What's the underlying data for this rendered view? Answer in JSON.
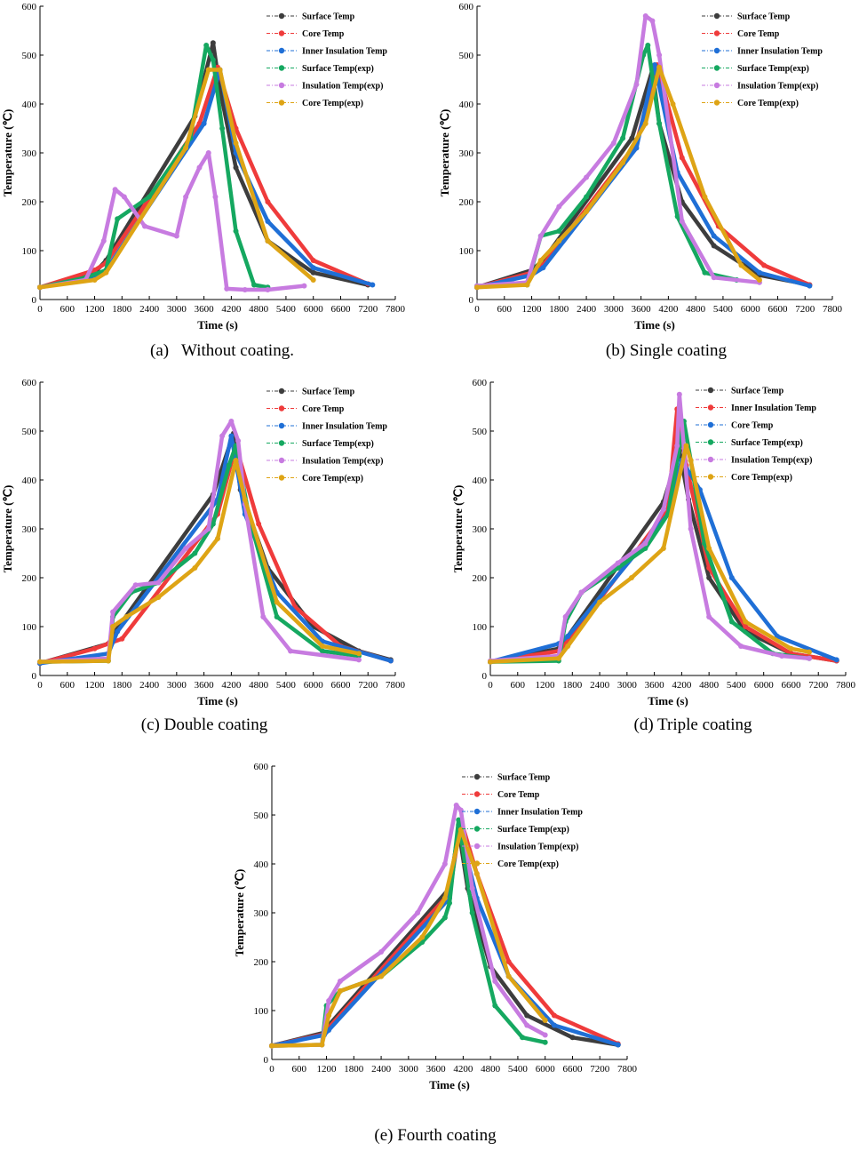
{
  "colors": {
    "surface": "#3d3d3d",
    "core": "#ef3b3b",
    "inner": "#1f6fd6",
    "surface_exp": "#15a860",
    "insulation_exp": "#c77be0",
    "core_exp": "#dea415"
  },
  "chart_data": [
    {
      "id": "a",
      "type": "line",
      "caption": "(a)   Without coating.",
      "xlabel": "Time (s)",
      "ylabel": "Temperature (℃)",
      "xlim": [
        0,
        7800
      ],
      "ylim": [
        0,
        600
      ],
      "xticks": [
        0,
        600,
        1200,
        1800,
        2400,
        3000,
        3600,
        4200,
        4800,
        5400,
        6000,
        6600,
        7200,
        7800
      ],
      "yticks": [
        0,
        100,
        200,
        300,
        400,
        500,
        600
      ],
      "series": [
        {
          "name": "Surface Temp",
          "key": "surface",
          "x": [
            0,
            1200,
            1450,
            3400,
            3800,
            3950,
            4300,
            5000,
            6000,
            7200
          ],
          "y": [
            25,
            55,
            80,
            375,
            525,
            430,
            270,
            120,
            55,
            30
          ]
        },
        {
          "name": "Core Temp",
          "key": "core",
          "x": [
            0,
            1200,
            1450,
            3500,
            3900,
            4300,
            5000,
            6000,
            7200
          ],
          "y": [
            25,
            60,
            75,
            360,
            475,
            350,
            200,
            80,
            32
          ]
        },
        {
          "name": "Inner Insulation Temp",
          "key": "inner",
          "x": [
            0,
            1200,
            1450,
            3600,
            3950,
            4300,
            5000,
            6000,
            7300
          ],
          "y": [
            25,
            48,
            60,
            360,
            470,
            300,
            160,
            65,
            30
          ]
        },
        {
          "name": "Surface Temp(exp)",
          "key": "surface_exp",
          "x": [
            0,
            1000,
            1450,
            1700,
            2400,
            3300,
            3650,
            3800,
            4000,
            4300,
            4700,
            5000
          ],
          "y": [
            25,
            45,
            60,
            165,
            210,
            330,
            520,
            490,
            350,
            140,
            30,
            25
          ]
        },
        {
          "name": "Insulation Temp(exp)",
          "key": "insulation_exp",
          "x": [
            0,
            1000,
            1400,
            1650,
            1850,
            2300,
            3000,
            3200,
            3500,
            3700,
            3850,
            4100,
            4500,
            5000,
            5800
          ],
          "y": [
            25,
            40,
            120,
            225,
            210,
            150,
            130,
            210,
            270,
            300,
            210,
            22,
            20,
            20,
            28
          ]
        },
        {
          "name": "Core Temp(exp)",
          "key": "core_exp",
          "x": [
            0,
            1200,
            1450,
            3200,
            3700,
            3950,
            4300,
            5000,
            6000
          ],
          "y": [
            25,
            40,
            55,
            310,
            470,
            470,
            320,
            120,
            40
          ]
        }
      ]
    },
    {
      "id": "b",
      "type": "line",
      "caption": "(b) Single coating",
      "xlabel": "Time (s)",
      "ylabel": "Temperature (℃)",
      "xlim": [
        0,
        7800
      ],
      "ylim": [
        0,
        600
      ],
      "xticks": [
        0,
        600,
        1200,
        1800,
        2400,
        3000,
        3600,
        4200,
        4800,
        5400,
        6000,
        6600,
        7200,
        7800
      ],
      "yticks": [
        0,
        100,
        200,
        300,
        400,
        500,
        600
      ],
      "series": [
        {
          "name": "Surface Temp",
          "key": "surface",
          "x": [
            0,
            1200,
            1450,
            3400,
            3850,
            4000,
            4500,
            5200,
            6200,
            7300
          ],
          "y": [
            25,
            60,
            80,
            330,
            470,
            360,
            200,
            110,
            50,
            30
          ]
        },
        {
          "name": "Core Temp",
          "key": "core",
          "x": [
            0,
            1200,
            1450,
            3500,
            3950,
            4500,
            5300,
            6300,
            7300
          ],
          "y": [
            25,
            55,
            70,
            320,
            480,
            290,
            150,
            70,
            30
          ]
        },
        {
          "name": "Inner Insulation Temp",
          "key": "inner",
          "x": [
            0,
            1200,
            1450,
            3500,
            3900,
            4400,
            5200,
            6200,
            7300
          ],
          "y": [
            25,
            50,
            65,
            310,
            480,
            260,
            130,
            55,
            28
          ]
        },
        {
          "name": "Surface Temp(exp)",
          "key": "surface_exp",
          "x": [
            0,
            1100,
            1400,
            1800,
            2400,
            3200,
            3650,
            3750,
            4000,
            4400,
            5000,
            5700
          ],
          "y": [
            28,
            30,
            130,
            140,
            210,
            330,
            500,
            520,
            360,
            170,
            55,
            40
          ]
        },
        {
          "name": "Insulation Temp(exp)",
          "key": "insulation_exp",
          "x": [
            0,
            1100,
            1400,
            1800,
            2400,
            3000,
            3500,
            3700,
            3850,
            4000,
            4500,
            5200,
            6200
          ],
          "y": [
            28,
            35,
            130,
            190,
            250,
            320,
            440,
            580,
            570,
            500,
            160,
            45,
            35
          ]
        },
        {
          "name": "Core Temp(exp)",
          "key": "core_exp",
          "x": [
            0,
            1100,
            1400,
            1800,
            2400,
            3200,
            3700,
            4000,
            4300,
            5000,
            5800,
            6200
          ],
          "y": [
            25,
            30,
            80,
            120,
            180,
            280,
            360,
            475,
            400,
            210,
            70,
            40
          ]
        }
      ]
    },
    {
      "id": "c",
      "type": "line",
      "caption": "(c) Double coating",
      "xlabel": "Time (s)",
      "ylabel": "Temperature (℃)",
      "xlim": [
        0,
        7800
      ],
      "ylim": [
        0,
        600
      ],
      "xticks": [
        0,
        600,
        1200,
        1800,
        2400,
        3000,
        3600,
        4200,
        4800,
        5400,
        6000,
        6600,
        7200,
        7800
      ],
      "yticks": [
        0,
        100,
        200,
        300,
        400,
        500,
        600
      ],
      "series": [
        {
          "name": "Surface Temp",
          "key": "surface",
          "x": [
            0,
            1500,
            1650,
            3800,
            4250,
            4400,
            5000,
            6000,
            7000,
            7700
          ],
          "y": [
            25,
            65,
            90,
            370,
            495,
            380,
            220,
            100,
            50,
            32
          ]
        },
        {
          "name": "Core Temp",
          "key": "core",
          "x": [
            0,
            1200,
            1500,
            1800,
            3900,
            4300,
            4800,
            5600,
            6600,
            7700
          ],
          "y": [
            25,
            55,
            65,
            75,
            330,
            470,
            310,
            140,
            60,
            30
          ]
        },
        {
          "name": "Inner Insulation Temp",
          "key": "inner",
          "x": [
            0,
            1500,
            1700,
            3900,
            4200,
            4500,
            5200,
            6200,
            7700
          ],
          "y": [
            25,
            45,
            90,
            360,
            490,
            330,
            170,
            70,
            30
          ]
        },
        {
          "name": "Surface Temp(exp)",
          "key": "surface_exp",
          "x": [
            0,
            1500,
            1600,
            2000,
            2600,
            3400,
            3800,
            4150,
            4300,
            4600,
            5200,
            6200,
            7000
          ],
          "y": [
            28,
            30,
            120,
            170,
            190,
            250,
            310,
            430,
            470,
            320,
            120,
            50,
            40
          ]
        },
        {
          "name": "Insulation Temp(exp)",
          "key": "insulation_exp",
          "x": [
            0,
            1500,
            1600,
            2100,
            2600,
            3200,
            3700,
            4000,
            4200,
            4350,
            4500,
            4900,
            5500,
            7000
          ],
          "y": [
            28,
            35,
            130,
            185,
            190,
            260,
            300,
            490,
            520,
            480,
            350,
            120,
            50,
            32
          ]
        },
        {
          "name": "Core Temp(exp)",
          "key": "core_exp",
          "x": [
            0,
            1500,
            1600,
            1900,
            2600,
            3400,
            3900,
            4300,
            4500,
            5200,
            6200,
            7000
          ],
          "y": [
            28,
            30,
            100,
            120,
            160,
            220,
            280,
            440,
            360,
            150,
            60,
            45
          ]
        }
      ]
    },
    {
      "id": "d",
      "type": "line",
      "caption": "(d) Triple coating",
      "xlabel": "Time (s)",
      "ylabel": "Temperature (℃)",
      "xlim": [
        0,
        7800
      ],
      "ylim": [
        0,
        600
      ],
      "xticks": [
        0,
        600,
        1200,
        1800,
        2400,
        3000,
        3600,
        4200,
        4800,
        5400,
        6000,
        6600,
        7200,
        7800
      ],
      "yticks": [
        0,
        100,
        200,
        300,
        400,
        500,
        600
      ],
      "series": [
        {
          "name": "Surface Temp",
          "key": "surface",
          "x": [
            0,
            1500,
            1700,
            3800,
            4150,
            4350,
            4800,
            5600,
            6600,
            7600
          ],
          "y": [
            28,
            55,
            80,
            355,
            460,
            360,
            200,
            90,
            45,
            30
          ]
        },
        {
          "name": "Inner Insulation Temp",
          "key": "core",
          "x": [
            0,
            1500,
            1700,
            3900,
            4100,
            4300,
            4800,
            5600,
            6600,
            7600
          ],
          "y": [
            28,
            50,
            70,
            340,
            545,
            430,
            220,
            100,
            45,
            30
          ]
        },
        {
          "name": "Core Temp",
          "key": "inner",
          "x": [
            0,
            1500,
            1700,
            3900,
            4200,
            4600,
            5300,
            6300,
            7600
          ],
          "y": [
            28,
            65,
            80,
            330,
            440,
            380,
            200,
            80,
            32
          ]
        },
        {
          "name": "Surface Temp(exp)",
          "key": "surface_exp",
          "x": [
            0,
            1500,
            1650,
            2000,
            2800,
            3400,
            3900,
            4250,
            4400,
            4700,
            5300,
            6200,
            7000
          ],
          "y": [
            28,
            30,
            110,
            170,
            220,
            260,
            330,
            520,
            440,
            270,
            110,
            45,
            35
          ]
        },
        {
          "name": "Insulation Temp(exp)",
          "key": "insulation_exp",
          "x": [
            0,
            1500,
            1650,
            2000,
            2800,
            3400,
            3800,
            4100,
            4150,
            4400,
            4800,
            5500,
            6400,
            7000
          ],
          "y": [
            30,
            40,
            120,
            170,
            230,
            270,
            340,
            470,
            575,
            300,
            120,
            60,
            40,
            35
          ]
        },
        {
          "name": "Core Temp(exp)",
          "key": "core_exp",
          "x": [
            0,
            1500,
            1700,
            2400,
            3100,
            3800,
            4300,
            4400,
            4800,
            5600,
            6600,
            7000
          ],
          "y": [
            28,
            35,
            60,
            150,
            200,
            260,
            470,
            440,
            260,
            110,
            55,
            48
          ]
        }
      ]
    },
    {
      "id": "e",
      "type": "line",
      "caption": "(e) Fourth coating",
      "xlabel": "Time (s)",
      "ylabel": "Temperature (℃)",
      "xlim": [
        0,
        7800
      ],
      "ylim": [
        0,
        600
      ],
      "xticks": [
        0,
        600,
        1200,
        1800,
        2400,
        3000,
        3600,
        4200,
        4800,
        5400,
        6000,
        6600,
        7200,
        7800
      ],
      "yticks": [
        0,
        100,
        200,
        300,
        400,
        500,
        600
      ],
      "series": [
        {
          "name": "Surface Temp",
          "key": "surface",
          "x": [
            0,
            1150,
            1250,
            3900,
            4100,
            4300,
            4800,
            5600,
            6600,
            7600
          ],
          "y": [
            28,
            55,
            70,
            350,
            470,
            350,
            190,
            90,
            45,
            30
          ]
        },
        {
          "name": "Core Temp",
          "key": "core",
          "x": [
            0,
            1150,
            1250,
            3900,
            4150,
            4500,
            5200,
            6200,
            7600
          ],
          "y": [
            28,
            52,
            65,
            340,
            490,
            380,
            200,
            90,
            32
          ]
        },
        {
          "name": "Inner Insulation Temp",
          "key": "inner",
          "x": [
            0,
            1150,
            1250,
            3900,
            4100,
            4500,
            5200,
            6200,
            7600
          ],
          "y": [
            28,
            50,
            60,
            330,
            480,
            330,
            170,
            70,
            30
          ]
        },
        {
          "name": "Surface Temp(exp)",
          "key": "surface_exp",
          "x": [
            0,
            1100,
            1200,
            1500,
            2400,
            3300,
            3800,
            3900,
            4100,
            4400,
            4900,
            5500,
            6000
          ],
          "y": [
            28,
            30,
            110,
            140,
            170,
            240,
            290,
            320,
            490,
            300,
            110,
            45,
            35
          ]
        },
        {
          "name": "Insulation Temp(exp)",
          "key": "insulation_exp",
          "x": [
            0,
            1100,
            1250,
            1500,
            2400,
            3200,
            3800,
            4050,
            4150,
            4400,
            4900,
            5600,
            6000
          ],
          "y": [
            28,
            30,
            120,
            160,
            220,
            300,
            400,
            520,
            510,
            350,
            160,
            70,
            50
          ]
        },
        {
          "name": "Core Temp(exp)",
          "key": "core_exp",
          "x": [
            0,
            1100,
            1250,
            1500,
            2400,
            3300,
            3800,
            4150,
            4500,
            5200,
            6000
          ],
          "y": [
            28,
            30,
            90,
            140,
            170,
            250,
            330,
            470,
            380,
            170,
            80
          ]
        }
      ]
    }
  ]
}
